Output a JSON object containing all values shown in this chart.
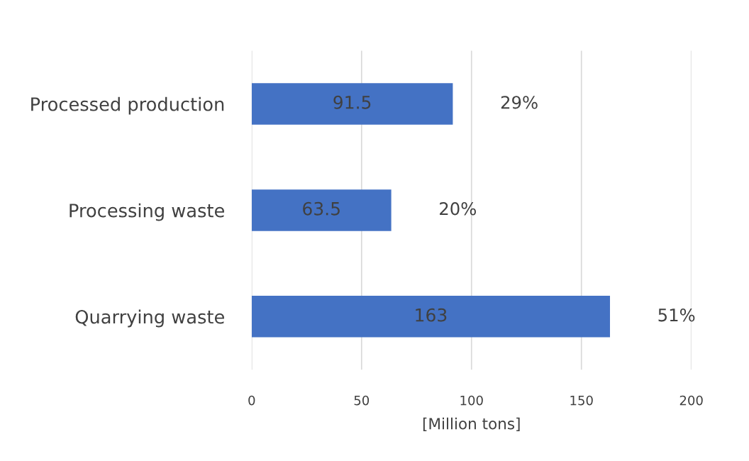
{
  "chart_data": {
    "type": "bar",
    "orientation": "horizontal",
    "categories": [
      "Processed production",
      "Processing waste",
      "Quarrying waste"
    ],
    "values": [
      91.5,
      63.5,
      163
    ],
    "color": "#4472c4",
    "data_labels": true,
    "xlim": [
      0,
      200
    ],
    "xticks": [
      0,
      50,
      100,
      150,
      200
    ],
    "xlabel": "[Million tons]",
    "grid": "x",
    "annotations": [
      {
        "text": "29%",
        "x": 91.5,
        "y": "Processed production"
      },
      {
        "text": "20%",
        "x": 63.5,
        "y": "Processing waste"
      },
      {
        "text": "51%",
        "x": 163,
        "y": "Quarrying waste"
      }
    ]
  }
}
